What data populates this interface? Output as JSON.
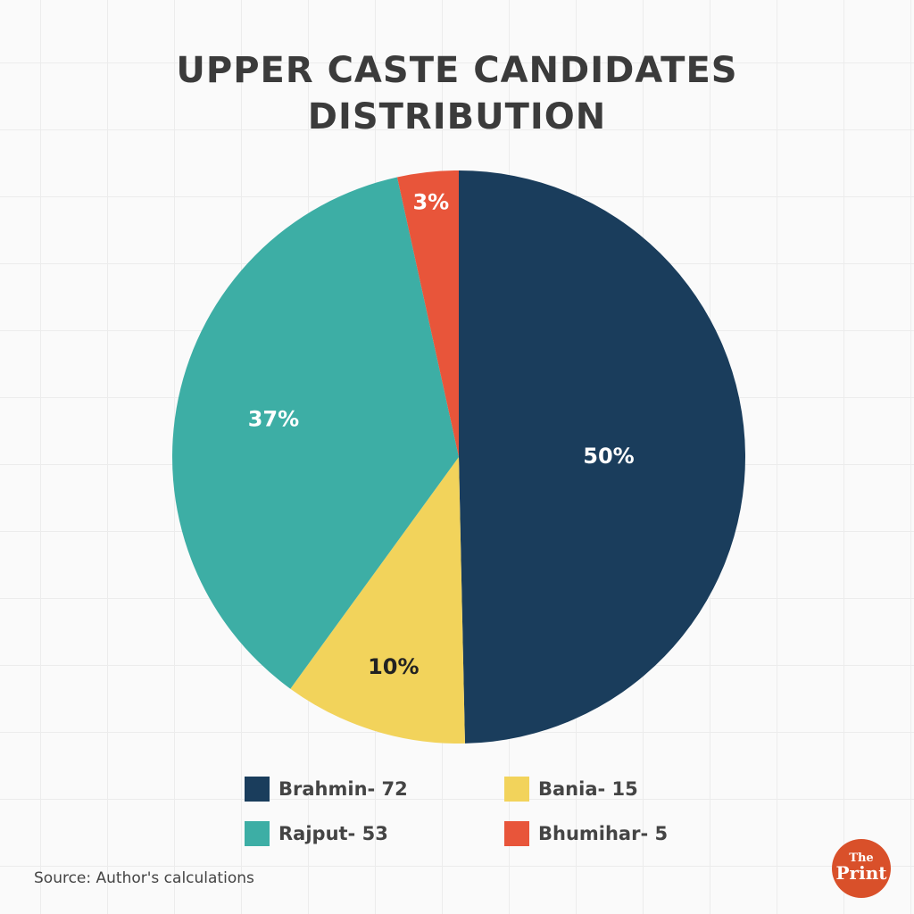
{
  "chart_data": {
    "type": "pie",
    "title": [
      "UPPER CASTE CANDIDATES",
      "DISTRIBUTION"
    ],
    "slices": [
      {
        "label": "Brahmin- 72",
        "value": 72,
        "percent_label": "50%",
        "color": "#1a3d5c"
      },
      {
        "label": "Bania- 15",
        "value": 15,
        "percent_label": "10%",
        "color": "#f2d35b"
      },
      {
        "label": "Rajput- 53",
        "value": 53,
        "percent_label": "37%",
        "color": "#3daea5"
      },
      {
        "label": "Bhumihar- 5",
        "value": 5,
        "percent_label": "3%",
        "color": "#e8553a"
      }
    ],
    "start": "top",
    "direction": "clockwise",
    "legend_placement": "bottom",
    "grid": true
  },
  "source": "Source: Author's calculations",
  "logo": {
    "line1": "The",
    "line2": "Print"
  }
}
